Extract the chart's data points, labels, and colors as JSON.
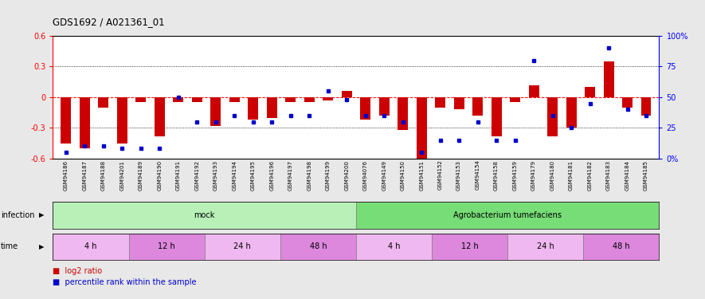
{
  "title": "GDS1692 / A021361_01",
  "samples": [
    "GSM94186",
    "GSM94187",
    "GSM94188",
    "GSM94201",
    "GSM94189",
    "GSM94190",
    "GSM94191",
    "GSM94192",
    "GSM94193",
    "GSM94194",
    "GSM94195",
    "GSM94196",
    "GSM94197",
    "GSM94198",
    "GSM94199",
    "GSM94200",
    "GSM94076",
    "GSM94149",
    "GSM94150",
    "GSM94151",
    "GSM94152",
    "GSM94153",
    "GSM94154",
    "GSM94158",
    "GSM94159",
    "GSM94179",
    "GSM94180",
    "GSM94181",
    "GSM94182",
    "GSM94183",
    "GSM94184",
    "GSM94185"
  ],
  "log2_ratio": [
    -0.45,
    -0.5,
    -0.1,
    -0.45,
    -0.05,
    -0.38,
    -0.05,
    -0.05,
    -0.28,
    -0.05,
    -0.22,
    -0.2,
    -0.05,
    -0.05,
    -0.03,
    0.06,
    -0.22,
    -0.18,
    -0.32,
    -0.6,
    -0.1,
    -0.12,
    -0.18,
    -0.38,
    -0.05,
    0.12,
    -0.38,
    -0.3,
    0.1,
    0.35,
    -0.1,
    -0.18
  ],
  "percentile": [
    5,
    10,
    10,
    8,
    8,
    8,
    50,
    30,
    30,
    35,
    30,
    30,
    35,
    35,
    55,
    48,
    35,
    35,
    30,
    5,
    15,
    15,
    30,
    15,
    15,
    80,
    35,
    25,
    45,
    90,
    40,
    35
  ],
  "ylim_left": [
    -0.6,
    0.6
  ],
  "yticks_left": [
    -0.6,
    -0.3,
    0.0,
    0.3,
    0.6
  ],
  "yticks_right": [
    0,
    25,
    50,
    75,
    100
  ],
  "ytick_labels_right": [
    "0%",
    "25",
    "50",
    "75",
    "100%"
  ],
  "hlines_dotted": [
    0.3,
    -0.3
  ],
  "hline_zero": 0.0,
  "bar_color": "#cc0000",
  "dot_color": "#0000cc",
  "infection_groups": [
    {
      "label": "mock",
      "start": 0,
      "end": 16,
      "color": "#b8f0b8"
    },
    {
      "label": "Agrobacterium tumefaciens",
      "start": 16,
      "end": 32,
      "color": "#77dd77"
    }
  ],
  "time_groups": [
    {
      "label": "4 h",
      "start": 0,
      "end": 4,
      "color": "#f0b8f0"
    },
    {
      "label": "12 h",
      "start": 4,
      "end": 8,
      "color": "#dd88dd"
    },
    {
      "label": "24 h",
      "start": 8,
      "end": 12,
      "color": "#f0b8f0"
    },
    {
      "label": "48 h",
      "start": 12,
      "end": 16,
      "color": "#dd88dd"
    },
    {
      "label": "4 h",
      "start": 16,
      "end": 20,
      "color": "#f0b8f0"
    },
    {
      "label": "12 h",
      "start": 20,
      "end": 24,
      "color": "#dd88dd"
    },
    {
      "label": "24 h",
      "start": 24,
      "end": 28,
      "color": "#f0b8f0"
    },
    {
      "label": "48 h",
      "start": 28,
      "end": 32,
      "color": "#dd88dd"
    }
  ],
  "legend_labels": [
    "log2 ratio",
    "percentile rank within the sample"
  ],
  "bar_color_legend": "#cc0000",
  "dot_color_legend": "#0000cc",
  "bar_width": 0.55,
  "background_color": "#e8e8e8",
  "plot_bg": "#ffffff",
  "infection_row_label": "infection",
  "time_row_label": "time"
}
